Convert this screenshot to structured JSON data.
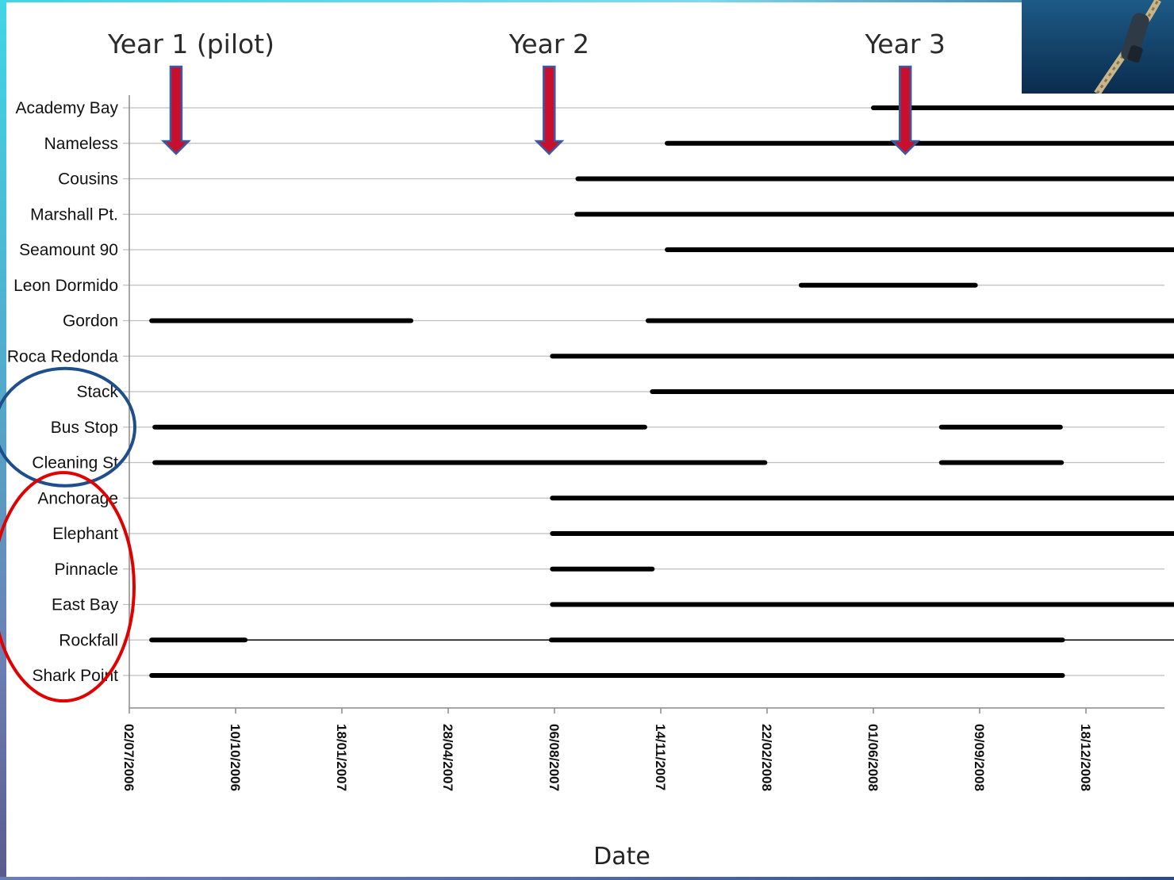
{
  "colors": {
    "bar": "#000000",
    "gridline": "#bfbfbf",
    "arrow_fill": "#c8102e",
    "arrow_edge": "#3b5ba0",
    "circle_blue": "#1f4e8c",
    "circle_red": "#e00000"
  },
  "chart_data": {
    "type": "bar",
    "orientation": "horizontal",
    "xlabel": "Date",
    "xlim": [
      "2006-07-02",
      "2009-03-31"
    ],
    "x_ticks": [
      "02/07/2006",
      "10/10/2006",
      "18/01/2007",
      "28/04/2007",
      "06/08/2007",
      "14/11/2007",
      "22/02/2008",
      "01/06/2008",
      "09/09/2008",
      "18/12/2008"
    ],
    "grid": true,
    "sites": [
      "Academy Bay",
      "Nameless",
      "Cousins",
      "Marshall Pt.",
      "Seamount 90",
      "Leon Dormido",
      "Gordon",
      "Roca Redonda",
      "Stack",
      "Bus Stop",
      "Cleaning St",
      "Anchorage",
      "Elephant",
      "Pinnacle",
      "East Bay",
      "Rockfall",
      "Shark Point"
    ],
    "intervals": [
      {
        "site": "Academy Bay",
        "start": "2008-06-01",
        "end": "2009-03-31"
      },
      {
        "site": "Nameless",
        "start": "2007-11-20",
        "end": "2009-03-31"
      },
      {
        "site": "Cousins",
        "start": "2007-08-28",
        "end": "2009-03-31"
      },
      {
        "site": "Marshall Pt.",
        "start": "2007-08-27",
        "end": "2009-03-31"
      },
      {
        "site": "Seamount 90",
        "start": "2007-11-20",
        "end": "2009-03-31"
      },
      {
        "site": "Leon Dormido",
        "start": "2008-03-25",
        "end": "2008-09-05"
      },
      {
        "site": "Gordon",
        "start": "2006-07-23",
        "end": "2007-03-24"
      },
      {
        "site": "Gordon",
        "start": "2007-11-02",
        "end": "2009-03-31"
      },
      {
        "site": "Roca Redonda",
        "start": "2007-08-04",
        "end": "2009-03-31"
      },
      {
        "site": "Stack",
        "start": "2007-11-06",
        "end": "2009-03-31"
      },
      {
        "site": "Bus Stop",
        "start": "2006-07-26",
        "end": "2007-10-30"
      },
      {
        "site": "Bus Stop",
        "start": "2008-08-04",
        "end": "2008-11-24"
      },
      {
        "site": "Cleaning St",
        "start": "2006-07-26",
        "end": "2008-02-20"
      },
      {
        "site": "Cleaning St",
        "start": "2008-08-04",
        "end": "2008-11-25"
      },
      {
        "site": "Anchorage",
        "start": "2007-08-04",
        "end": "2009-03-31"
      },
      {
        "site": "Elephant",
        "start": "2007-08-04",
        "end": "2009-03-31"
      },
      {
        "site": "Pinnacle",
        "start": "2007-08-04",
        "end": "2007-11-06"
      },
      {
        "site": "East Bay",
        "start": "2007-08-04",
        "end": "2009-03-31"
      },
      {
        "site": "Rockfall",
        "start": "2006-07-23",
        "end": "2006-10-19"
      },
      {
        "site": "Rockfall",
        "start": "2007-08-03",
        "end": "2008-11-26"
      },
      {
        "site": "Shark Point",
        "start": "2006-07-23",
        "end": "2008-11-26"
      }
    ],
    "thin_connectors": [
      {
        "site": "Rockfall",
        "start": "2006-10-19",
        "end": "2007-08-03"
      },
      {
        "site": "Rockfall",
        "start": "2008-11-26",
        "end": "2009-03-31"
      }
    ],
    "annotations": [
      {
        "text": "Year 1 (pilot)",
        "date": "2006-08-15"
      },
      {
        "text": "Year 2",
        "date": "2007-08-01"
      },
      {
        "text": "Year 3",
        "date": "2008-07-01"
      }
    ],
    "highlight_groups": [
      {
        "color": "blue",
        "sites": [
          "Stack",
          "Bus Stop",
          "Cleaning St"
        ]
      },
      {
        "color": "red",
        "sites": [
          "Anchorage",
          "Elephant",
          "Pinnacle",
          "East Bay",
          "Rockfall",
          "Shark Point"
        ]
      }
    ]
  }
}
